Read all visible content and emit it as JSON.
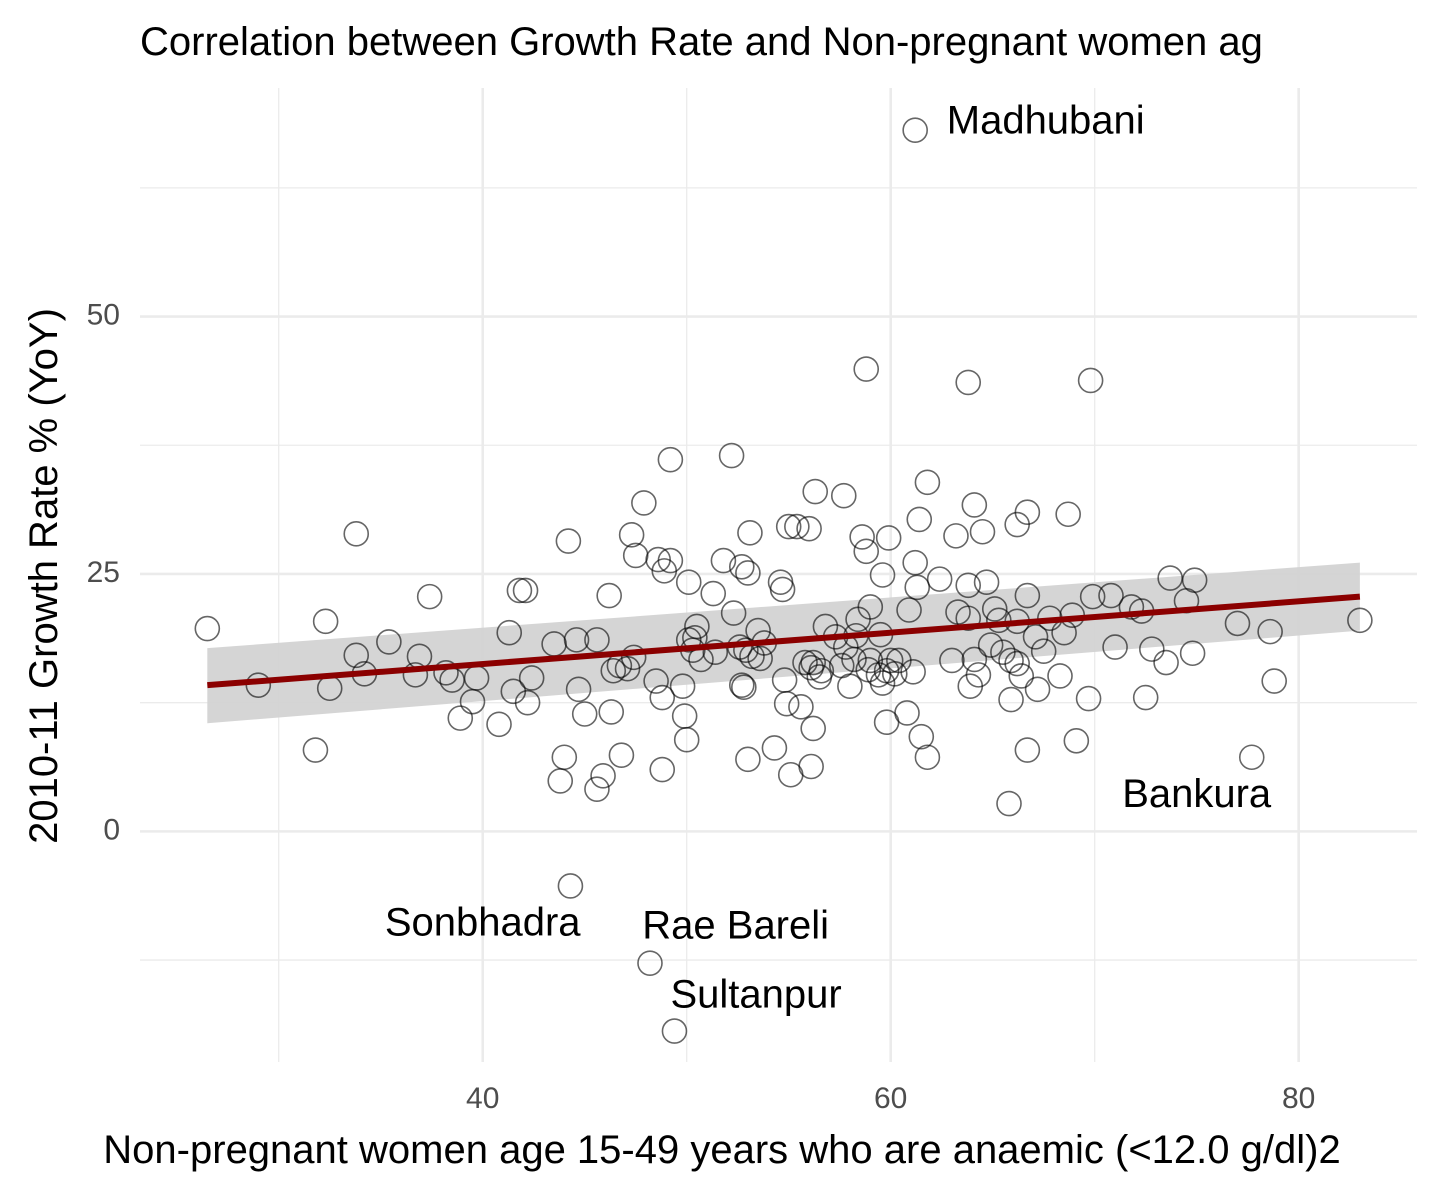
{
  "chart_data": {
    "type": "scatter",
    "title": "Correlation between Growth Rate and Non-pregnant women ag",
    "xlabel": "Non-pregnant women age 15-49 years who are anaemic (<12.0 g/dl)2",
    "ylabel": "2010-11 Growth Rate % (YoY)",
    "xlim": [
      23.2,
      85.8
    ],
    "ylim": [
      -22.4,
      72.2
    ],
    "x_ticks": [
      40,
      60,
      80
    ],
    "y_ticks": [
      0,
      25,
      50
    ],
    "x_tick_labels": [
      "40",
      "60",
      "80"
    ],
    "y_tick_labels": [
      "0",
      "25",
      "50"
    ],
    "grid": true,
    "legend": "none",
    "colors": {
      "points": "#000000",
      "trend_line": "#8b0000",
      "confidence_band": "#d3d3d3"
    },
    "trend": {
      "method": "linear",
      "x": [
        26.5,
        83.0
      ],
      "y": [
        14.2,
        22.8
      ],
      "ci_lower": [
        10.5,
        19.5
      ],
      "ci_upper": [
        17.8,
        26.1
      ]
    },
    "points": [
      {
        "x": 26.5,
        "y": 19.7
      },
      {
        "x": 29.0,
        "y": 14.2
      },
      {
        "x": 31.8,
        "y": 7.9
      },
      {
        "x": 32.3,
        "y": 20.4
      },
      {
        "x": 32.5,
        "y": 13.9
      },
      {
        "x": 33.8,
        "y": 28.9
      },
      {
        "x": 33.8,
        "y": 17.1
      },
      {
        "x": 34.2,
        "y": 15.3
      },
      {
        "x": 35.4,
        "y": 18.4
      },
      {
        "x": 36.7,
        "y": 15.2
      },
      {
        "x": 36.9,
        "y": 17.0
      },
      {
        "x": 37.4,
        "y": 22.8
      },
      {
        "x": 38.2,
        "y": 15.4
      },
      {
        "x": 38.5,
        "y": 14.7
      },
      {
        "x": 38.9,
        "y": 11.0
      },
      {
        "x": 39.5,
        "y": 12.6
      },
      {
        "x": 39.7,
        "y": 14.9
      },
      {
        "x": 40.8,
        "y": 10.4
      },
      {
        "x": 41.3,
        "y": 19.3
      },
      {
        "x": 41.5,
        "y": 13.6
      },
      {
        "x": 41.8,
        "y": 23.4
      },
      {
        "x": 42.1,
        "y": 23.4
      },
      {
        "x": 42.2,
        "y": 12.5
      },
      {
        "x": 42.4,
        "y": 14.9
      },
      {
        "x": 43.5,
        "y": 18.2
      },
      {
        "x": 43.8,
        "y": 4.9
      },
      {
        "x": 44.0,
        "y": 7.2
      },
      {
        "x": 44.2,
        "y": 28.2
      },
      {
        "x": 44.3,
        "y": -5.3
      },
      {
        "x": 44.6,
        "y": 18.6
      },
      {
        "x": 44.7,
        "y": 13.8
      },
      {
        "x": 45.0,
        "y": 11.4
      },
      {
        "x": 45.6,
        "y": 18.6
      },
      {
        "x": 45.6,
        "y": 4.1
      },
      {
        "x": 45.9,
        "y": 5.4
      },
      {
        "x": 46.2,
        "y": 22.9
      },
      {
        "x": 46.3,
        "y": 11.6
      },
      {
        "x": 46.4,
        "y": 15.6
      },
      {
        "x": 46.7,
        "y": 16.1
      },
      {
        "x": 46.8,
        "y": 7.4
      },
      {
        "x": 47.1,
        "y": 15.8
      },
      {
        "x": 47.3,
        "y": 28.8
      },
      {
        "x": 47.4,
        "y": 16.9
      },
      {
        "x": 47.5,
        "y": 26.8
      },
      {
        "x": 47.9,
        "y": 31.9
      },
      {
        "x": 48.5,
        "y": 14.6
      },
      {
        "x": 48.6,
        "y": 26.4
      },
      {
        "x": 48.8,
        "y": 13.0
      },
      {
        "x": 48.8,
        "y": 6.0
      },
      {
        "x": 48.9,
        "y": 25.3
      },
      {
        "x": 49.2,
        "y": 36.1
      },
      {
        "x": 49.2,
        "y": 26.3
      },
      {
        "x": 49.8,
        "y": 14.1
      },
      {
        "x": 49.9,
        "y": 11.2
      },
      {
        "x": 50.0,
        "y": 8.9
      },
      {
        "x": 50.1,
        "y": 18.6
      },
      {
        "x": 50.1,
        "y": 24.2
      },
      {
        "x": 50.3,
        "y": 17.6
      },
      {
        "x": 50.4,
        "y": 18.8
      },
      {
        "x": 50.5,
        "y": 19.9
      },
      {
        "x": 50.7,
        "y": 16.7
      },
      {
        "x": 51.3,
        "y": 23.1
      },
      {
        "x": 51.4,
        "y": 17.4
      },
      {
        "x": 51.8,
        "y": 26.3
      },
      {
        "x": 52.2,
        "y": 36.5
      },
      {
        "x": 52.3,
        "y": 21.2
      },
      {
        "x": 52.6,
        "y": 17.9
      },
      {
        "x": 52.7,
        "y": 14.2
      },
      {
        "x": 52.7,
        "y": 25.7
      },
      {
        "x": 52.8,
        "y": 14.0
      },
      {
        "x": 52.9,
        "y": 17.6
      },
      {
        "x": 53.0,
        "y": 7.0
      },
      {
        "x": 53.0,
        "y": 25.1
      },
      {
        "x": 53.1,
        "y": 29.0
      },
      {
        "x": 53.2,
        "y": 17.0
      },
      {
        "x": 53.5,
        "y": 19.5
      },
      {
        "x": 53.6,
        "y": 16.8
      },
      {
        "x": 53.8,
        "y": 18.3
      },
      {
        "x": 54.3,
        "y": 8.1
      },
      {
        "x": 54.6,
        "y": 24.2
      },
      {
        "x": 54.7,
        "y": 23.5
      },
      {
        "x": 54.8,
        "y": 14.7
      },
      {
        "x": 54.9,
        "y": 12.4
      },
      {
        "x": 55.0,
        "y": 29.6
      },
      {
        "x": 55.1,
        "y": 5.5
      },
      {
        "x": 55.4,
        "y": 29.6
      },
      {
        "x": 55.6,
        "y": 12.1
      },
      {
        "x": 55.8,
        "y": 16.4
      },
      {
        "x": 56.0,
        "y": 29.4
      },
      {
        "x": 56.1,
        "y": 15.9
      },
      {
        "x": 56.1,
        "y": 6.3
      },
      {
        "x": 56.2,
        "y": 10.0
      },
      {
        "x": 56.2,
        "y": 16.4
      },
      {
        "x": 56.3,
        "y": 33.0
      },
      {
        "x": 56.5,
        "y": 15.0
      },
      {
        "x": 56.6,
        "y": 15.6
      },
      {
        "x": 56.8,
        "y": 19.9
      },
      {
        "x": 57.3,
        "y": 18.9
      },
      {
        "x": 57.6,
        "y": 16.1
      },
      {
        "x": 57.7,
        "y": 32.6
      },
      {
        "x": 57.8,
        "y": 17.9
      },
      {
        "x": 58.0,
        "y": 14.1
      },
      {
        "x": 58.2,
        "y": 16.7
      },
      {
        "x": 58.3,
        "y": 19.0
      },
      {
        "x": 58.4,
        "y": 20.6
      },
      {
        "x": 58.6,
        "y": 28.6
      },
      {
        "x": 58.8,
        "y": 44.9
      },
      {
        "x": 58.8,
        "y": 27.2
      },
      {
        "x": 58.9,
        "y": 15.7
      },
      {
        "x": 59.0,
        "y": 16.6
      },
      {
        "x": 59.0,
        "y": 21.8
      },
      {
        "x": 59.4,
        "y": 15.2
      },
      {
        "x": 59.5,
        "y": 19.1
      },
      {
        "x": 59.6,
        "y": 24.9
      },
      {
        "x": 59.6,
        "y": 14.4
      },
      {
        "x": 59.8,
        "y": 10.6
      },
      {
        "x": 59.8,
        "y": 15.6
      },
      {
        "x": 59.9,
        "y": 28.5
      },
      {
        "x": 60.0,
        "y": 16.6
      },
      {
        "x": 60.2,
        "y": 15.3
      },
      {
        "x": 60.4,
        "y": 16.6
      },
      {
        "x": 60.8,
        "y": 11.5
      },
      {
        "x": 60.9,
        "y": 21.5
      },
      {
        "x": 61.1,
        "y": 15.5
      },
      {
        "x": 61.2,
        "y": 26.1
      },
      {
        "x": 61.2,
        "y": 68.1
      },
      {
        "x": 61.3,
        "y": 23.7
      },
      {
        "x": 61.4,
        "y": 30.3
      },
      {
        "x": 61.5,
        "y": 9.2
      },
      {
        "x": 61.8,
        "y": 7.2
      },
      {
        "x": 61.8,
        "y": 33.9
      },
      {
        "x": 62.4,
        "y": 24.5
      },
      {
        "x": 63.0,
        "y": 16.6
      },
      {
        "x": 63.2,
        "y": 28.7
      },
      {
        "x": 63.3,
        "y": 21.3
      },
      {
        "x": 63.8,
        "y": 43.6
      },
      {
        "x": 63.8,
        "y": 23.9
      },
      {
        "x": 63.8,
        "y": 20.7
      },
      {
        "x": 63.9,
        "y": 14.1
      },
      {
        "x": 64.1,
        "y": 16.7
      },
      {
        "x": 64.1,
        "y": 31.7
      },
      {
        "x": 64.3,
        "y": 15.2
      },
      {
        "x": 64.5,
        "y": 29.1
      },
      {
        "x": 64.7,
        "y": 24.2
      },
      {
        "x": 64.9,
        "y": 18.1
      },
      {
        "x": 65.1,
        "y": 21.6
      },
      {
        "x": 65.3,
        "y": 20.5
      },
      {
        "x": 65.5,
        "y": 17.4
      },
      {
        "x": 65.8,
        "y": 2.7
      },
      {
        "x": 65.9,
        "y": 16.6
      },
      {
        "x": 65.9,
        "y": 12.8
      },
      {
        "x": 66.2,
        "y": 16.3
      },
      {
        "x": 66.2,
        "y": 29.8
      },
      {
        "x": 66.2,
        "y": 20.4
      },
      {
        "x": 66.4,
        "y": 15.1
      },
      {
        "x": 66.7,
        "y": 22.9
      },
      {
        "x": 66.7,
        "y": 31.0
      },
      {
        "x": 66.7,
        "y": 7.9
      },
      {
        "x": 67.1,
        "y": 18.9
      },
      {
        "x": 67.2,
        "y": 13.8
      },
      {
        "x": 67.5,
        "y": 17.5
      },
      {
        "x": 67.8,
        "y": 20.7
      },
      {
        "x": 68.3,
        "y": 15.1
      },
      {
        "x": 68.5,
        "y": 19.3
      },
      {
        "x": 68.7,
        "y": 30.8
      },
      {
        "x": 68.9,
        "y": 21.0
      },
      {
        "x": 69.1,
        "y": 8.8
      },
      {
        "x": 69.7,
        "y": 12.9
      },
      {
        "x": 69.8,
        "y": 43.8
      },
      {
        "x": 69.9,
        "y": 22.8
      },
      {
        "x": 70.8,
        "y": 22.9
      },
      {
        "x": 71.0,
        "y": 17.9
      },
      {
        "x": 71.8,
        "y": 21.8
      },
      {
        "x": 72.3,
        "y": 21.4
      },
      {
        "x": 72.5,
        "y": 13.0
      },
      {
        "x": 72.8,
        "y": 17.7
      },
      {
        "x": 73.5,
        "y": 16.4
      },
      {
        "x": 73.7,
        "y": 24.6
      },
      {
        "x": 74.5,
        "y": 22.4
      },
      {
        "x": 74.8,
        "y": 17.3
      },
      {
        "x": 74.9,
        "y": 24.4
      },
      {
        "x": 77.0,
        "y": 20.2
      },
      {
        "x": 77.7,
        "y": 7.2
      },
      {
        "x": 78.6,
        "y": 19.4
      },
      {
        "x": 78.8,
        "y": 14.6
      },
      {
        "x": 83.0,
        "y": 20.5
      },
      {
        "x": 48.2,
        "y": -12.8
      },
      {
        "x": 49.4,
        "y": -19.4
      }
    ],
    "annotations": [
      {
        "label": "Madhubani",
        "x": 67.6,
        "y": 68.8
      },
      {
        "label": "Bankura",
        "x": 75.0,
        "y": 3.4
      },
      {
        "label": "Sonbhadra",
        "x": 40.0,
        "y": -9.1
      },
      {
        "label": "Rae Bareli",
        "x": 52.4,
        "y": -9.4
      },
      {
        "label": "Sultanpur",
        "x": 53.4,
        "y": -16.1
      }
    ]
  }
}
